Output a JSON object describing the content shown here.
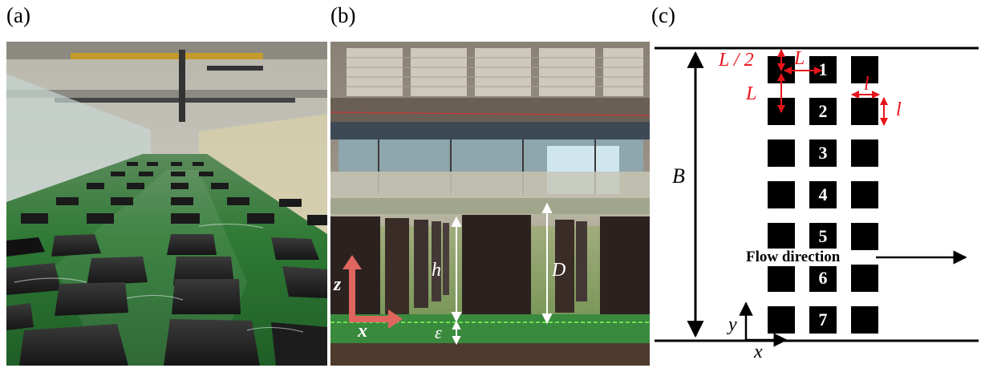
{
  "panels": {
    "a": {
      "label": "(a)"
    },
    "b": {
      "label": "(b)"
    },
    "c": {
      "label": "(c)"
    }
  },
  "photo_b": {
    "axis_z": "z",
    "axis_x": "x",
    "h": "h",
    "D": "D",
    "epsilon": "ε"
  },
  "schematic": {
    "block_numbers": [
      "1",
      "2",
      "3",
      "4",
      "5",
      "6",
      "7"
    ],
    "L_half": "L / 2",
    "L_top": "L",
    "L_left": "L",
    "l_horizontal": "l",
    "l_vertical": "l",
    "B": "B",
    "flow": "Flow direction",
    "axis_y": "y",
    "axis_x": "x"
  },
  "colors": {
    "annotation_red": "#e8141b",
    "grass": "#2f7a35",
    "block": "#0d0d0d",
    "arrow_salmon": "#e0655f"
  }
}
